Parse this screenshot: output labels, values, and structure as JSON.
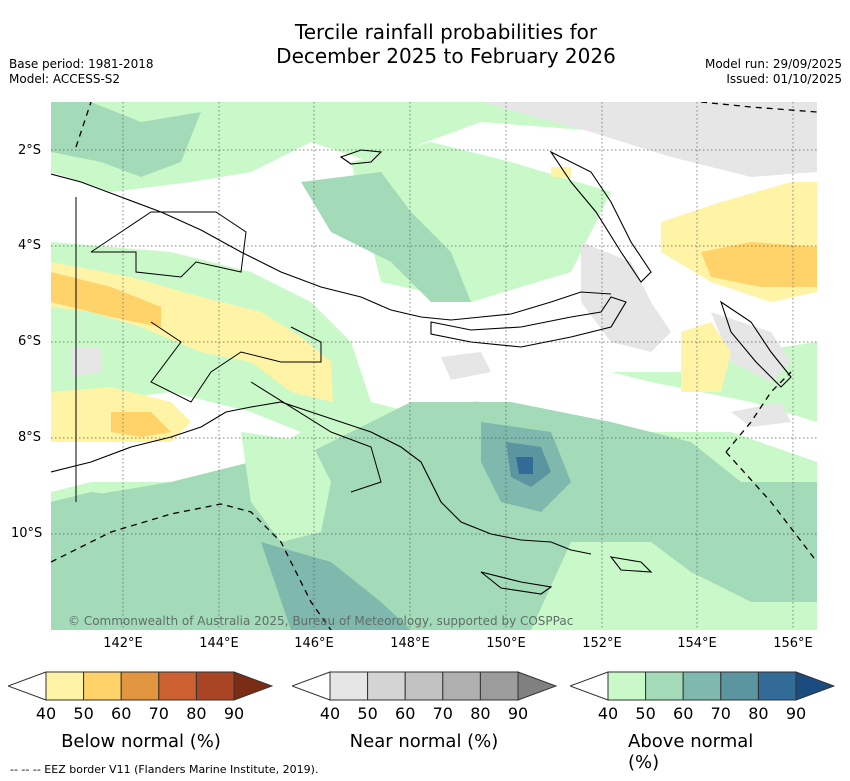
{
  "title": {
    "line1": "Tercile rainfall probabilities for",
    "line2": "December 2025 to February 2026"
  },
  "meta": {
    "base_period": "Base period: 1981-2018",
    "model": "Model: ACCESS-S2",
    "model_run": "Model run: 29/09/2025",
    "issued": "Issued: 01/10/2025"
  },
  "map": {
    "lat_labels": [
      "2°S",
      "4°S",
      "6°S",
      "8°S",
      "10°S"
    ],
    "lon_labels": [
      "142°E",
      "144°E",
      "146°E",
      "148°E",
      "150°E",
      "152°E",
      "154°E",
      "156°E"
    ],
    "copyright": "© Commonwealth of Australia 2025, Bureau of Meteorology, supported by COSPPac"
  },
  "legends": [
    {
      "title": "Below normal (%)",
      "ticks": [
        "40",
        "50",
        "60",
        "70",
        "80",
        "90"
      ],
      "colors": [
        "#fff3a6",
        "#ffd36a",
        "#e0953e",
        "#cc6030",
        "#a94424",
        "#7a2d14"
      ]
    },
    {
      "title": "Near normal (%)",
      "ticks": [
        "40",
        "50",
        "60",
        "70",
        "80",
        "90"
      ],
      "colors": [
        "#e6e6e6",
        "#d4d4d4",
        "#c2c2c2",
        "#b0b0b0",
        "#9c9c9c",
        "#808080"
      ]
    },
    {
      "title": "Above normal (%)",
      "ticks": [
        "40",
        "50",
        "60",
        "70",
        "80",
        "90"
      ],
      "colors": [
        "#c9f9c9",
        "#a3dbb9",
        "#7fb8ac",
        "#5b95a0",
        "#326a98",
        "#1a4c80"
      ]
    }
  ],
  "footer": "--  --  -- EEZ border V11 (Flanders Marine Institute, 2019)."
}
